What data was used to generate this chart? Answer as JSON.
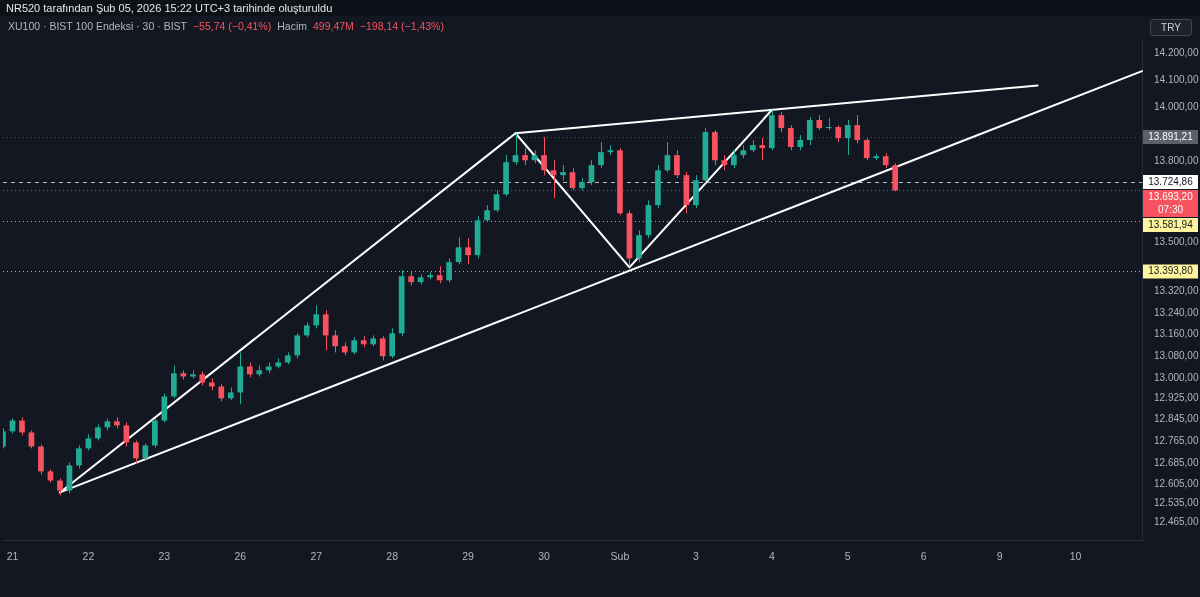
{
  "chart_data": {
    "type": "candlestick",
    "title": "NR520 tarafından Şub 05, 2026 15:22 UTC+3 tarihinde oluşturuldu",
    "subtitle": "XU100 · BIST 100 Endeksi · 30 · BIST",
    "ylabel": "TRY",
    "annotations": [
      "−55,74 (−0,41%)",
      "Hacim",
      "499,47M",
      "−198,14 (−1,43%)"
    ],
    "categories": [
      null,
      "21",
      null,
      null,
      null,
      null,
      null,
      null,
      null,
      "22",
      null,
      null,
      null,
      null,
      null,
      null,
      null,
      "23",
      null,
      null,
      null,
      null,
      null,
      null,
      null,
      "26",
      null,
      null,
      null,
      null,
      null,
      null,
      null,
      "27",
      null,
      null,
      null,
      null,
      null,
      null,
      null,
      "28",
      null,
      null,
      null,
      null,
      null,
      null,
      null,
      "29",
      null,
      null,
      null,
      null,
      null,
      null,
      null,
      "30",
      null,
      null,
      null,
      null,
      null,
      null,
      null,
      "Şub",
      null,
      null,
      null,
      null,
      null,
      null,
      null,
      "3",
      null,
      null,
      null,
      null,
      null,
      null,
      null,
      "4",
      null,
      null,
      null,
      null,
      null,
      null,
      null,
      "5",
      null,
      null,
      null,
      null,
      null,
      null,
      null,
      "6",
      null,
      null,
      null,
      null,
      null,
      null,
      null,
      "9",
      null,
      null,
      null,
      null,
      null,
      null,
      null,
      "10",
      null,
      null,
      null,
      null,
      null,
      null,
      null
    ],
    "ohlc": [
      [
        12746,
        12813,
        12739,
        12802
      ],
      [
        12802,
        12850,
        12794,
        12842
      ],
      [
        12842,
        12854,
        12787,
        12798
      ],
      [
        12798,
        12805,
        12739,
        12746
      ],
      [
        12746,
        12754,
        12642,
        12654
      ],
      [
        12654,
        12661,
        12613,
        12620
      ],
      [
        12620,
        12628,
        12565,
        12583
      ],
      [
        12583,
        12687,
        12572,
        12676
      ],
      [
        12676,
        12750,
        12665,
        12739
      ],
      [
        12739,
        12791,
        12731,
        12776
      ],
      [
        12776,
        12828,
        12768,
        12817
      ],
      [
        12817,
        12850,
        12805,
        12839
      ],
      [
        12839,
        12854,
        12813,
        12824
      ],
      [
        12824,
        12835,
        12746,
        12761
      ],
      [
        12761,
        12768,
        12683,
        12702
      ],
      [
        12702,
        12757,
        12694,
        12750
      ],
      [
        12750,
        12850,
        12742,
        12842
      ],
      [
        12842,
        12942,
        12835,
        12931
      ],
      [
        12931,
        13046,
        12924,
        13017
      ],
      [
        13017,
        13028,
        12994,
        13005
      ],
      [
        13005,
        13028,
        12998,
        13013
      ],
      [
        13013,
        13024,
        12972,
        12983
      ],
      [
        12983,
        12998,
        12954,
        12968
      ],
      [
        12968,
        12976,
        12913,
        12924
      ],
      [
        12924,
        12965,
        12917,
        12946
      ],
      [
        12946,
        13094,
        12902,
        13042
      ],
      [
        13042,
        13057,
        13002,
        13013
      ],
      [
        13013,
        13046,
        13005,
        13028
      ],
      [
        13028,
        13057,
        13017,
        13042
      ],
      [
        13042,
        13072,
        13035,
        13057
      ],
      [
        13057,
        13094,
        13050,
        13083
      ],
      [
        13083,
        13165,
        13072,
        13157
      ],
      [
        13157,
        13205,
        13150,
        13194
      ],
      [
        13194,
        13268,
        13183,
        13235
      ],
      [
        13235,
        13250,
        13102,
        13157
      ],
      [
        13157,
        13176,
        13094,
        13117
      ],
      [
        13117,
        13131,
        13083,
        13094
      ],
      [
        13094,
        13150,
        13087,
        13139
      ],
      [
        13139,
        13154,
        13113,
        13124
      ],
      [
        13124,
        13157,
        13117,
        13146
      ],
      [
        13146,
        13154,
        13065,
        13080
      ],
      [
        13080,
        13183,
        13072,
        13165
      ],
      [
        13165,
        13398,
        13154,
        13376
      ],
      [
        13376,
        13394,
        13342,
        13354
      ],
      [
        13354,
        13383,
        13346,
        13372
      ],
      [
        13372,
        13391,
        13365,
        13380
      ],
      [
        13380,
        13413,
        13350,
        13361
      ],
      [
        13361,
        13442,
        13354,
        13428
      ],
      [
        13428,
        13520,
        13420,
        13483
      ],
      [
        13483,
        13517,
        13420,
        13454
      ],
      [
        13454,
        13598,
        13442,
        13583
      ],
      [
        13583,
        13639,
        13576,
        13620
      ],
      [
        13620,
        13694,
        13613,
        13679
      ],
      [
        13679,
        13824,
        13672,
        13798
      ],
      [
        13798,
        13905,
        13787,
        13824
      ],
      [
        13824,
        13850,
        13787,
        13805
      ],
      [
        13805,
        13842,
        13794,
        13824
      ],
      [
        13824,
        13891,
        13750,
        13768
      ],
      [
        13768,
        13805,
        13665,
        13750
      ],
      [
        13750,
        13787,
        13731,
        13761
      ],
      [
        13761,
        13776,
        13694,
        13702
      ],
      [
        13702,
        13739,
        13694,
        13724
      ],
      [
        13724,
        13805,
        13713,
        13787
      ],
      [
        13787,
        13872,
        13776,
        13835
      ],
      [
        13835,
        13861,
        13824,
        13842
      ],
      [
        13842,
        13850,
        13602,
        13609
      ],
      [
        13609,
        13620,
        13413,
        13442
      ],
      [
        13442,
        13546,
        13428,
        13528
      ],
      [
        13528,
        13657,
        13517,
        13639
      ],
      [
        13639,
        13787,
        13628,
        13768
      ],
      [
        13768,
        13872,
        13761,
        13824
      ],
      [
        13824,
        13842,
        13739,
        13750
      ],
      [
        13750,
        13761,
        13609,
        13639
      ],
      [
        13639,
        13750,
        13628,
        13731
      ],
      [
        13731,
        13924,
        13720,
        13909
      ],
      [
        13909,
        13917,
        13787,
        13805
      ],
      [
        13805,
        13824,
        13768,
        13787
      ],
      [
        13787,
        13842,
        13776,
        13824
      ],
      [
        13824,
        13861,
        13813,
        13842
      ],
      [
        13842,
        13880,
        13835,
        13861
      ],
      [
        13861,
        13887,
        13805,
        13850
      ],
      [
        13850,
        13991,
        13842,
        13972
      ],
      [
        13972,
        13983,
        13909,
        13924
      ],
      [
        13924,
        13935,
        13842,
        13854
      ],
      [
        13854,
        13898,
        13842,
        13880
      ],
      [
        13880,
        13965,
        13861,
        13954
      ],
      [
        13954,
        13972,
        13917,
        13924
      ],
      [
        13924,
        13961,
        13917,
        13928
      ],
      [
        13928,
        13935,
        13872,
        13887
      ],
      [
        13887,
        13954,
        13824,
        13935
      ],
      [
        13935,
        13972,
        13868,
        13880
      ],
      [
        13880,
        13887,
        13805,
        13813
      ],
      [
        13813,
        13828,
        13805,
        13820
      ],
      [
        13820,
        13831,
        13776,
        13787
      ],
      [
        13787,
        13794,
        13690,
        13693.2
      ],
      null,
      null,
      null,
      null,
      null,
      null,
      null,
      null,
      null,
      null,
      null,
      null,
      null,
      null,
      null,
      null,
      null,
      null,
      null,
      null,
      null,
      null,
      null,
      null,
      null,
      null
    ],
    "colors": [
      "#22ab94",
      "#22ab94",
      "#f7525f",
      "#f7525f",
      "#f7525f",
      "#f7525f",
      "#f7525f",
      "#22ab94",
      "#22ab94",
      "#22ab94",
      "#22ab94",
      "#22ab94",
      "#f7525f",
      "#f7525f",
      "#f7525f",
      "#22ab94",
      "#22ab94",
      "#22ab94",
      "#22ab94",
      "#f7525f",
      "#22ab94",
      "#f7525f",
      "#f7525f",
      "#f7525f",
      "#22ab94",
      "#22ab94",
      "#f7525f",
      "#22ab94",
      "#22ab94",
      "#22ab94",
      "#22ab94",
      "#22ab94",
      "#22ab94",
      "#22ab94",
      "#f7525f",
      "#f7525f",
      "#f7525f",
      "#22ab94",
      "#f7525f",
      "#22ab94",
      "#f7525f",
      "#22ab94",
      "#22ab94",
      "#f7525f",
      "#22ab94",
      "#22ab94",
      "#f7525f",
      "#22ab94",
      "#22ab94",
      "#f7525f",
      "#22ab94",
      "#22ab94",
      "#22ab94",
      "#22ab94",
      "#22ab94",
      "#f7525f",
      "#22ab94",
      "#f7525f",
      "#f7525f",
      "#22ab94",
      "#f7525f",
      "#22ab94",
      "#22ab94",
      "#22ab94",
      "#22ab94",
      "#f7525f",
      "#f7525f",
      "#22ab94",
      "#22ab94",
      "#22ab94",
      "#22ab94",
      "#f7525f",
      "#f7525f",
      "#22ab94",
      "#22ab94",
      "#f7525f",
      "#f7525f",
      "#22ab94",
      "#22ab94",
      "#22ab94",
      "#f7525f",
      "#22ab94",
      "#f7525f",
      "#f7525f",
      "#22ab94",
      "#22ab94",
      "#f7525f",
      "#22ab94",
      "#f7525f",
      "#22ab94",
      "#f7525f",
      "#f7525f",
      "#22ab94",
      "#f7525f",
      "#f7525f",
      null,
      null,
      null,
      null,
      null,
      null,
      null,
      null,
      null,
      null,
      null,
      null,
      null,
      null,
      null,
      null,
      null,
      null,
      null,
      null,
      null,
      null,
      null,
      null,
      null,
      null
    ],
    "series": [
      {
        "type": "line",
        "color": "#ffffff",
        "values": [
          null,
          null,
          null,
          null,
          null,
          null,
          12576,
          null,
          null,
          null,
          null,
          null,
          null,
          null,
          null,
          null,
          null,
          null,
          null,
          null,
          null,
          null,
          null,
          null,
          null,
          null,
          null,
          null,
          null,
          null,
          null,
          null,
          null,
          null,
          null,
          null,
          null,
          null,
          null,
          null,
          null,
          null,
          null,
          null,
          null,
          null,
          null,
          null,
          null,
          null,
          null,
          null,
          null,
          null,
          13905,
          null,
          null,
          null,
          null,
          null,
          null,
          null,
          null,
          null,
          null,
          null,
          13409,
          null,
          null,
          null,
          null,
          null,
          null,
          null,
          null,
          null,
          null,
          null,
          null,
          null,
          null,
          13991,
          null,
          null,
          null,
          null,
          null,
          null,
          null,
          null,
          null,
          null,
          null,
          null,
          null,
          null,
          null,
          null,
          null,
          null,
          null,
          null,
          null,
          null,
          null,
          null,
          null,
          null,
          null,
          null,
          null,
          null,
          null,
          null,
          null,
          null,
          null,
          null,
          null,
          null,
          null
        ]
      },
      {
        "type": "line",
        "color": "#ffffff",
        "values": [
          null,
          null,
          null,
          null,
          null,
          null,
          12576,
          null,
          null,
          null,
          null,
          null,
          null,
          null,
          null,
          null,
          null,
          null,
          null,
          null,
          null,
          null,
          null,
          null,
          null,
          null,
          null,
          null,
          null,
          null,
          null,
          null,
          null,
          null,
          null,
          null,
          null,
          null,
          null,
          null,
          null,
          null,
          null,
          null,
          null,
          null,
          null,
          null,
          null,
          null,
          null,
          null,
          null,
          null,
          null,
          null,
          null,
          null,
          null,
          null,
          null,
          null,
          null,
          null,
          null,
          null,
          null,
          null,
          null,
          null,
          null,
          null,
          null,
          null,
          null,
          null,
          null,
          null,
          null,
          null,
          null,
          null,
          null,
          null,
          null,
          null,
          null,
          null,
          null,
          null,
          null,
          null,
          null,
          null,
          null,
          null,
          null,
          null,
          null,
          null,
          null,
          null,
          null,
          null,
          null,
          null,
          null,
          null,
          null,
          null,
          null,
          null,
          null,
          null,
          null,
          null,
          null,
          null,
          null,
          null,
          14135
        ]
      },
      {
        "type": "line",
        "color": "#ffffff",
        "values": [
          null,
          null,
          null,
          null,
          null,
          null,
          null,
          null,
          null,
          null,
          null,
          null,
          null,
          null,
          null,
          null,
          null,
          null,
          null,
          null,
          null,
          null,
          null,
          null,
          null,
          null,
          null,
          null,
          null,
          null,
          null,
          null,
          null,
          null,
          null,
          null,
          null,
          null,
          null,
          null,
          null,
          null,
          null,
          null,
          null,
          null,
          null,
          null,
          null,
          null,
          null,
          null,
          null,
          null,
          13905,
          null,
          null,
          null,
          null,
          null,
          null,
          null,
          null,
          null,
          null,
          null,
          null,
          null,
          null,
          null,
          null,
          null,
          null,
          null,
          null,
          null,
          null,
          null,
          null,
          null,
          null,
          null,
          null,
          null,
          null,
          null,
          null,
          null,
          null,
          null,
          null,
          null,
          null,
          null,
          null,
          null,
          null,
          null,
          null,
          null,
          null,
          null,
          null,
          null,
          null,
          null,
          null,
          null,
          null,
          14082,
          null,
          null,
          null,
          null,
          null,
          null,
          null,
          null,
          null,
          null,
          null
        ]
      }
    ],
    "ylim": [
      12400,
      14250
    ],
    "yticks": [
      {
        "value": 12465,
        "label": "12.465,00"
      },
      {
        "value": 12535,
        "label": "12.535,00"
      },
      {
        "value": 12605,
        "label": "12.605,00"
      },
      {
        "value": 12685,
        "label": "12.685,00"
      },
      {
        "value": 12765,
        "label": "12.765,00"
      },
      {
        "value": 12845,
        "label": "12.845,00"
      },
      {
        "value": 12925,
        "label": "12.925,00"
      },
      {
        "value": 13000,
        "label": "13.000,00"
      },
      {
        "value": 13080,
        "label": "13.080,00"
      },
      {
        "value": 13160,
        "label": "13.160,00"
      },
      {
        "value": 13240,
        "label": "13.240,00"
      },
      {
        "value": 13320,
        "label": "13.320,00"
      },
      {
        "value": 13500,
        "label": "13.500,00"
      },
      {
        "value": 13800,
        "label": "13.800,00"
      },
      {
        "value": 14000,
        "label": "14.000,00"
      },
      {
        "value": 14100,
        "label": "14.100,00"
      },
      {
        "value": 14200,
        "label": "14.200,00"
      }
    ],
    "ref_lines": [
      {
        "axis": "y",
        "value": 13891.21,
        "label": "13.891,21",
        "color": "#5d606b",
        "line_style": "dotted"
      },
      {
        "axis": "y",
        "value": 13724.86,
        "label": "13.724,86",
        "color": "#ffffff",
        "line_style": "dashed"
      },
      {
        "axis": "y",
        "value": 13693.2,
        "label": "13.693,20\n07:30",
        "color": "#f7525f",
        "line_style": "dotted"
      },
      {
        "axis": "y",
        "value": 13581.94,
        "label": "13.581,94",
        "color": "#fff59d",
        "line_style": "dotted"
      },
      {
        "axis": "y",
        "value": 13393.8,
        "label": "13.393,80",
        "color": "#fff59d",
        "line_style": "dotted"
      }
    ]
  }
}
